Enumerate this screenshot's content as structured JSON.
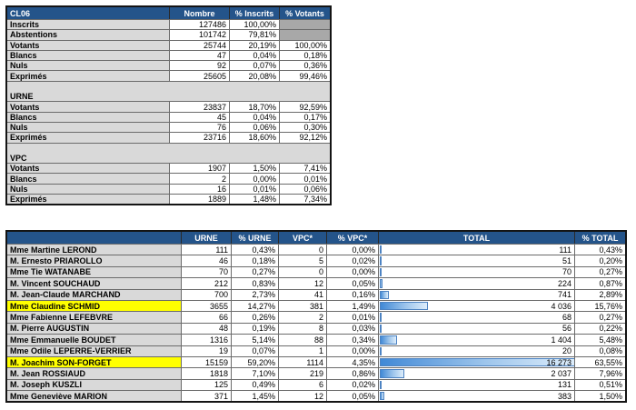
{
  "colors": {
    "header_bg": "#24548A",
    "header_text": "#FFFFFF",
    "label_bg": "#D9D9D9",
    "na_bg": "#A8A8A8",
    "highlight": "#FFFF00",
    "grid_line": "#6B6B6B",
    "bar_fill_start": "#4189D6",
    "bar_fill_mid": "#9FC6EC",
    "bar_fill_end": "#DDEDFB",
    "bar_border": "#4D83C2"
  },
  "summary_table": {
    "title": "CL06",
    "columns": [
      "Nombre",
      "% Inscrits",
      "% Votants"
    ],
    "rows": [
      {
        "type": "data",
        "label": "Inscrits",
        "nombre": "127486",
        "pct_inscrits": "100,00%",
        "pct_votants": "",
        "na_votants": true
      },
      {
        "type": "data",
        "label": "Abstentions",
        "nombre": "101742",
        "pct_inscrits": "79,81%",
        "pct_votants": "",
        "na_votants": true
      },
      {
        "type": "data",
        "label": "Votants",
        "nombre": "25744",
        "pct_inscrits": "20,19%",
        "pct_votants": "100,00%"
      },
      {
        "type": "data",
        "label": "Blancs",
        "nombre": "47",
        "pct_inscrits": "0,04%",
        "pct_votants": "0,18%"
      },
      {
        "type": "data",
        "label": "Nuls",
        "nombre": "92",
        "pct_inscrits": "0,07%",
        "pct_votants": "0,36%"
      },
      {
        "type": "data",
        "label": "Exprimés",
        "nombre": "25605",
        "pct_inscrits": "20,08%",
        "pct_votants": "99,46%"
      },
      {
        "type": "gap"
      },
      {
        "type": "section",
        "label": "URNE"
      },
      {
        "type": "data",
        "label": "Votants",
        "nombre": "23837",
        "pct_inscrits": "18,70%",
        "pct_votants": "92,59%"
      },
      {
        "type": "data",
        "label": "Blancs",
        "nombre": "45",
        "pct_inscrits": "0,04%",
        "pct_votants": "0,17%"
      },
      {
        "type": "data",
        "label": "Nuls",
        "nombre": "76",
        "pct_inscrits": "0,06%",
        "pct_votants": "0,30%"
      },
      {
        "type": "data",
        "label": "Exprimés",
        "nombre": "23716",
        "pct_inscrits": "18,60%",
        "pct_votants": "92,12%"
      },
      {
        "type": "gap"
      },
      {
        "type": "section",
        "label": "VPC"
      },
      {
        "type": "data",
        "label": "Votants",
        "nombre": "1907",
        "pct_inscrits": "1,50%",
        "pct_votants": "7,41%"
      },
      {
        "type": "data",
        "label": "Blancs",
        "nombre": "2",
        "pct_inscrits": "0,00%",
        "pct_votants": "0,01%"
      },
      {
        "type": "data",
        "label": "Nuls",
        "nombre": "16",
        "pct_inscrits": "0,01%",
        "pct_votants": "0,06%"
      },
      {
        "type": "data",
        "label": "Exprimés",
        "nombre": "1889",
        "pct_inscrits": "1,48%",
        "pct_votants": "7,34%"
      }
    ]
  },
  "results_table": {
    "columns": [
      "URNE",
      "% URNE",
      "VPC*",
      "% VPC*",
      "TOTAL",
      "% TOTAL"
    ],
    "max_total": 16273,
    "rows": [
      {
        "name": "Mme Martine LEROND",
        "urne": "111",
        "pct_urne": "0,43%",
        "vpc": "0",
        "pct_vpc": "0,00%",
        "total": "111",
        "total_value": 111,
        "pct_total": "0,43%",
        "highlight": false
      },
      {
        "name": "M. Ernesto PRIAROLLO",
        "urne": "46",
        "pct_urne": "0,18%",
        "vpc": "5",
        "pct_vpc": "0,02%",
        "total": "51",
        "total_value": 51,
        "pct_total": "0,20%",
        "highlight": false
      },
      {
        "name": "Mme Tie WATANABE",
        "urne": "70",
        "pct_urne": "0,27%",
        "vpc": "0",
        "pct_vpc": "0,00%",
        "total": "70",
        "total_value": 70,
        "pct_total": "0,27%",
        "highlight": false
      },
      {
        "name": "M. Vincent SOUCHAUD",
        "urne": "212",
        "pct_urne": "0,83%",
        "vpc": "12",
        "pct_vpc": "0,05%",
        "total": "224",
        "total_value": 224,
        "pct_total": "0,87%",
        "highlight": false
      },
      {
        "name": "M. Jean-Claude MARCHAND",
        "urne": "700",
        "pct_urne": "2,73%",
        "vpc": "41",
        "pct_vpc": "0,16%",
        "total": "741",
        "total_value": 741,
        "pct_total": "2,89%",
        "highlight": false
      },
      {
        "name": "Mme Claudine SCHMID",
        "urne": "3655",
        "pct_urne": "14,27%",
        "vpc": "381",
        "pct_vpc": "1,49%",
        "total": "4 036",
        "total_value": 4036,
        "pct_total": "15,76%",
        "highlight": true
      },
      {
        "name": "Mme Fabienne LEFEBVRE",
        "urne": "66",
        "pct_urne": "0,26%",
        "vpc": "2",
        "pct_vpc": "0,01%",
        "total": "68",
        "total_value": 68,
        "pct_total": "0,27%",
        "highlight": false
      },
      {
        "name": "M. Pierre AUGUSTIN",
        "urne": "48",
        "pct_urne": "0,19%",
        "vpc": "8",
        "pct_vpc": "0,03%",
        "total": "56",
        "total_value": 56,
        "pct_total": "0,22%",
        "highlight": false
      },
      {
        "name": "Mme Emmanuelle BOUDET",
        "urne": "1316",
        "pct_urne": "5,14%",
        "vpc": "88",
        "pct_vpc": "0,34%",
        "total": "1 404",
        "total_value": 1404,
        "pct_total": "5,48%",
        "highlight": false
      },
      {
        "name": "Mme Odile LEPERRE-VERRIER",
        "urne": "19",
        "pct_urne": "0,07%",
        "vpc": "1",
        "pct_vpc": "0,00%",
        "total": "20",
        "total_value": 20,
        "pct_total": "0,08%",
        "highlight": false
      },
      {
        "name": "M. Joachim SON-FORGET",
        "urne": "15159",
        "pct_urne": "59,20%",
        "vpc": "1114",
        "pct_vpc": "4,35%",
        "total": "16 273",
        "total_value": 16273,
        "pct_total": "63,55%",
        "highlight": true
      },
      {
        "name": "M. Jean ROSSIAUD",
        "urne": "1818",
        "pct_urne": "7,10%",
        "vpc": "219",
        "pct_vpc": "0,86%",
        "total": "2 037",
        "total_value": 2037,
        "pct_total": "7,96%",
        "highlight": false
      },
      {
        "name": "M. Joseph KUSZLI",
        "urne": "125",
        "pct_urne": "0,49%",
        "vpc": "6",
        "pct_vpc": "0,02%",
        "total": "131",
        "total_value": 131,
        "pct_total": "0,51%",
        "highlight": false
      },
      {
        "name": "Mme Geneviève MARION",
        "urne": "371",
        "pct_urne": "1,45%",
        "vpc": "12",
        "pct_vpc": "0,05%",
        "total": "383",
        "total_value": 383,
        "pct_total": "1,50%",
        "highlight": false
      }
    ]
  }
}
